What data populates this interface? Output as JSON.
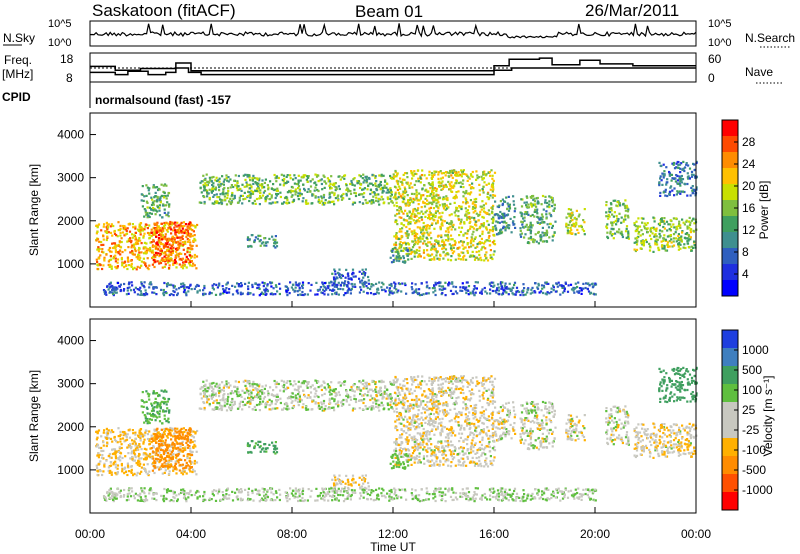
{
  "header": {
    "station": "Saskatoon (fitACF)",
    "beam": "Beam 01",
    "date": "26/Mar/2011"
  },
  "noise_panel": {
    "left_label": "N.Sky",
    "right_label": "N.Search",
    "left_ticks": [
      "10^5",
      "10^0"
    ],
    "right_ticks": [
      "10^5",
      "10^0"
    ]
  },
  "freq_panel": {
    "left_label_line1": "Freq.",
    "left_label_line2": "[MHz]",
    "right_label": "Nave",
    "left_ticks": [
      "18",
      "8"
    ],
    "right_ticks": [
      "60",
      "0"
    ],
    "freq_steps": [
      {
        "t": 0.0,
        "v": 11
      },
      {
        "t": 1.0,
        "v": 10
      },
      {
        "t": 1.5,
        "v": 11.5
      },
      {
        "t": 2.3,
        "v": 10
      },
      {
        "t": 3.0,
        "v": 11
      },
      {
        "t": 3.4,
        "v": 13
      },
      {
        "t": 3.9,
        "v": 11
      },
      {
        "t": 4.4,
        "v": 10
      },
      {
        "t": 16.0,
        "v": 12
      },
      {
        "t": 16.7,
        "v": 13
      },
      {
        "t": 21.8,
        "v": 13
      },
      {
        "t": 24.0,
        "v": 13
      }
    ],
    "nave_steps": [
      {
        "t": 0.0,
        "v": 46
      },
      {
        "t": 1.0,
        "v": 32
      },
      {
        "t": 2.0,
        "v": 38
      },
      {
        "t": 3.4,
        "v": 58
      },
      {
        "t": 4.0,
        "v": 30
      },
      {
        "t": 16.0,
        "v": 48
      },
      {
        "t": 16.6,
        "v": 72
      },
      {
        "t": 17.8,
        "v": 76
      },
      {
        "t": 18.3,
        "v": 52
      },
      {
        "t": 19.4,
        "v": 68
      },
      {
        "t": 20.2,
        "v": 55
      },
      {
        "t": 21.5,
        "v": 48
      },
      {
        "t": 24.0,
        "v": 48
      }
    ]
  },
  "cpid": {
    "label": "CPID",
    "program": "normalsound (fast) -157"
  },
  "x_axis": {
    "label": "Time UT",
    "ticks": [
      "00:00",
      "04:00",
      "08:00",
      "12:00",
      "16:00",
      "20:00",
      "00:00"
    ]
  },
  "power_panel": {
    "ylabel": "Slant Range [km]",
    "yticks": [
      "4000",
      "3000",
      "2000",
      "1000"
    ],
    "colorbar_label": "Power [dB]",
    "colorbar_ticks": [
      "28",
      "24",
      "20",
      "16",
      "12",
      "8",
      "4"
    ],
    "colors": [
      "#ff0000",
      "#ff4a00",
      "#ff8c00",
      "#ffc000",
      "#c8e000",
      "#7fbf3f",
      "#3f9f5f",
      "#3f8f8f",
      "#2f5fbf",
      "#1f2fdf",
      "#0000ff"
    ]
  },
  "velocity_panel": {
    "ylabel": "Slant Range [km]",
    "yticks": [
      "4000",
      "3000",
      "2000",
      "1000"
    ],
    "colorbar_label": "Velocity [m s⁻¹]",
    "colorbar_ticks": [
      "1000",
      "500",
      "100",
      "25",
      "-25",
      "-100",
      "-500",
      "-1000"
    ],
    "colors": [
      "#1f3fdf",
      "#3f7fbf",
      "#3f9f5f",
      "#5fbf3f",
      "#c8c8c0",
      "#c8c8c0",
      "#ffb000",
      "#ff8c00",
      "#ff5000",
      "#ff0000"
    ]
  },
  "chart_data": {
    "type": "heatmap",
    "x_unit": "hours UT",
    "xlim": [
      0,
      24
    ],
    "ylim": [
      0,
      4500
    ],
    "panels": [
      "power",
      "velocity"
    ],
    "scatter_regions": [
      {
        "t0": 0.2,
        "t1": 4.2,
        "r0": 900,
        "r1": 2000,
        "power_dB": 22,
        "velocity_mps": -30
      },
      {
        "t0": 2.4,
        "t1": 4.0,
        "r0": 1000,
        "r1": 2000,
        "power_dB": 26,
        "velocity_mps": -250
      },
      {
        "t0": 2.0,
        "t1": 3.1,
        "r0": 2100,
        "r1": 2900,
        "power_dB": 12,
        "velocity_mps": 90
      },
      {
        "t0": 4.3,
        "t1": 12.0,
        "r0": 2400,
        "r1": 3100,
        "power_dB": 14,
        "velocity_mps": 10
      },
      {
        "t0": 12.0,
        "t1": 16.0,
        "r0": 1100,
        "r1": 3200,
        "power_dB": 18,
        "velocity_mps": -10
      },
      {
        "t0": 6.2,
        "t1": 7.4,
        "r0": 1400,
        "r1": 1700,
        "power_dB": 10,
        "velocity_mps": 120
      },
      {
        "t0": 9.5,
        "t1": 11.0,
        "r0": 600,
        "r1": 900,
        "power_dB": 6,
        "velocity_mps": -20
      },
      {
        "t0": 11.8,
        "t1": 12.6,
        "r0": 1000,
        "r1": 1400,
        "power_dB": 10,
        "velocity_mps": 60
      },
      {
        "t0": 16.0,
        "t1": 16.8,
        "r0": 1700,
        "r1": 2600,
        "power_dB": 10,
        "velocity_mps": 0
      },
      {
        "t0": 17.0,
        "t1": 18.4,
        "r0": 1500,
        "r1": 2600,
        "power_dB": 12,
        "velocity_mps": 0
      },
      {
        "t0": 18.8,
        "t1": 19.6,
        "r0": 1700,
        "r1": 2300,
        "power_dB": 18,
        "velocity_mps": 0
      },
      {
        "t0": 20.4,
        "t1": 21.3,
        "r0": 1600,
        "r1": 2500,
        "power_dB": 14,
        "velocity_mps": 0
      },
      {
        "t0": 21.5,
        "t1": 24.0,
        "r0": 1300,
        "r1": 2100,
        "power_dB": 16,
        "velocity_mps": -10
      },
      {
        "t0": 22.5,
        "t1": 24.0,
        "r0": 2600,
        "r1": 3400,
        "power_dB": 8,
        "velocity_mps": 150
      },
      {
        "t0": 0.5,
        "t1": 20.0,
        "r0": 300,
        "r1": 600,
        "power_dB": 6,
        "velocity_mps": 20
      }
    ]
  }
}
